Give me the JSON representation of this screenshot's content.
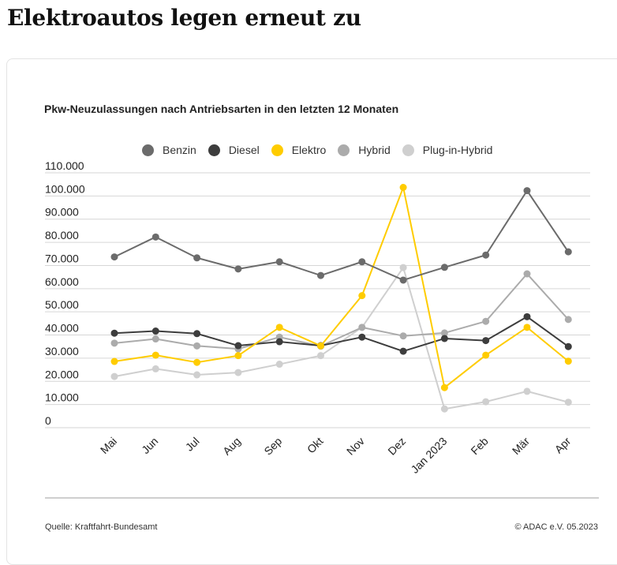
{
  "header": {
    "title": "Elektroautos legen erneut zu"
  },
  "footer": {
    "source": "Quelle: Kraftfahrt-Bundesamt",
    "copyright": "© ADAC e.V. 05.2023"
  },
  "chart_data": {
    "type": "line",
    "title": "Pkw-Neuzulassungen nach Antriebsarten in den letzten 12 Monaten",
    "xlabel": "",
    "ylabel": "",
    "categories": [
      "Mai",
      "Jun",
      "Jul",
      "Aug",
      "Sep",
      "Okt",
      "Nov",
      "Dez",
      "Jan 2023",
      "Feb",
      "Mär",
      "Apr"
    ],
    "ylim": [
      0,
      110000
    ],
    "yticks": [
      0,
      10000,
      20000,
      30000,
      40000,
      50000,
      60000,
      70000,
      80000,
      90000,
      100000,
      110000
    ],
    "ytick_labels": [
      "0",
      "10.000",
      "20.000",
      "30.000",
      "40.000",
      "50.000",
      "60.000",
      "70.000",
      "80.000",
      "90.000",
      "100.000",
      "110.000"
    ],
    "grid": true,
    "legend_position": "top-center",
    "series": [
      {
        "name": "Benzin",
        "color": "#6b6b6b",
        "values": [
          73700,
          82300,
          73300,
          68500,
          71600,
          65700,
          71600,
          63700,
          69200,
          74500,
          102300,
          75900
        ]
      },
      {
        "name": "Diesel",
        "color": "#3d3d3d",
        "values": [
          40800,
          41700,
          40600,
          35400,
          37100,
          35400,
          39100,
          33000,
          38500,
          37600,
          47900,
          35000
        ]
      },
      {
        "name": "Elektro",
        "color": "#ffcc00",
        "values": [
          28600,
          31300,
          28200,
          31100,
          43300,
          35300,
          57000,
          103700,
          17300,
          31300,
          43300,
          28700
        ]
      },
      {
        "name": "Hybrid",
        "color": "#ababab",
        "values": [
          36500,
          38300,
          35300,
          34000,
          39100,
          35200,
          43300,
          39600,
          40900,
          45900,
          66400,
          46700
        ]
      },
      {
        "name": "Plug-in-Hybrid",
        "color": "#cfcfcf",
        "values": [
          22100,
          25400,
          22800,
          23800,
          27400,
          31100,
          43300,
          69100,
          8100,
          11200,
          15700,
          11000
        ]
      }
    ]
  }
}
